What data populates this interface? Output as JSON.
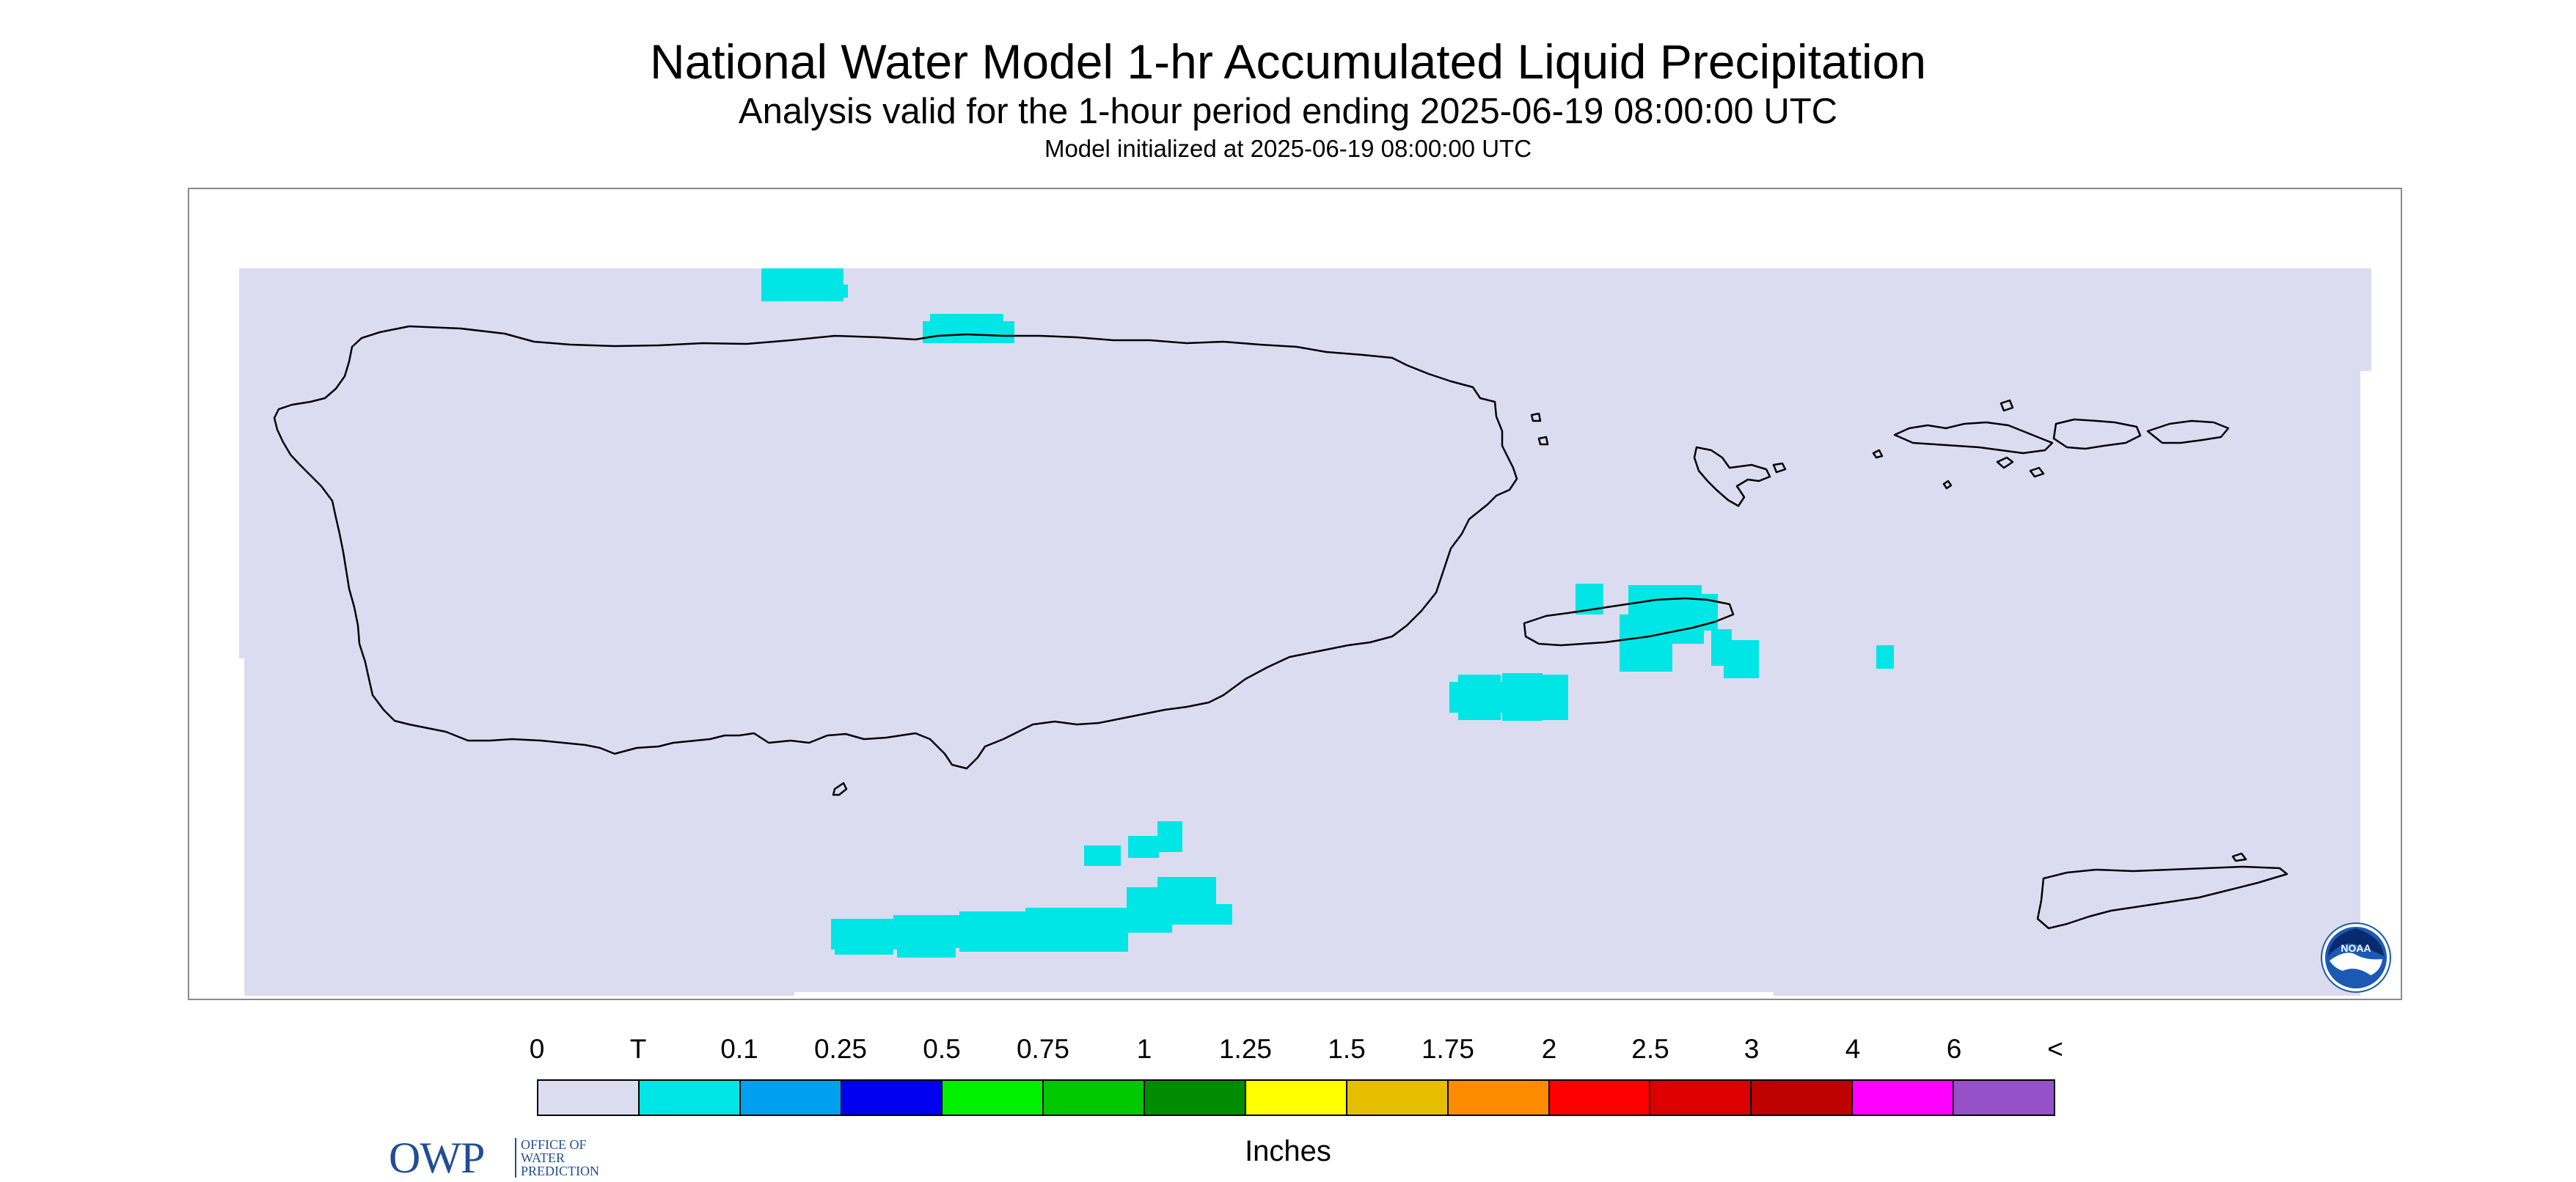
{
  "header": {
    "title": "National Water Model 1-hr Accumulated Liquid Precipitation",
    "subtitle": "Analysis valid for the 1-hour period ending 2025-06-19 08:00:00 UTC",
    "init_line": "Model initialized at 2025-06-19 08:00:00 UTC"
  },
  "colors": {
    "background_field": "#dcdcf0",
    "trace_precip": "#00e6e6",
    "coastline": "#000000",
    "frame": "#8a8a8a"
  },
  "legend": {
    "tick_labels": [
      "0",
      "T",
      "0.1",
      "0.25",
      "0.5",
      "0.75",
      "1",
      "1.25",
      "1.5",
      "1.75",
      "2",
      "2.5",
      "3",
      "4",
      "6",
      "<"
    ],
    "colors": [
      "#dcdcf0",
      "#00e6e6",
      "#00a0f0",
      "#0000f0",
      "#00f000",
      "#00c800",
      "#008c00",
      "#ffff00",
      "#e6be00",
      "#ff8c00",
      "#ff0000",
      "#dc0000",
      "#be0000",
      "#ff00ff",
      "#9650c8"
    ],
    "units": "Inches"
  },
  "logos": {
    "owp_letters": "OWP",
    "owp_text": [
      "OFFICE OF",
      "WATER",
      "PREDICTION"
    ],
    "noaa_text": "NOAA"
  },
  "map": {
    "region_islands": [
      "Puerto Rico",
      "Vieques",
      "Culebra",
      "St. Thomas",
      "St. John",
      "St. Croix"
    ],
    "precip_category_shown": "T"
  }
}
